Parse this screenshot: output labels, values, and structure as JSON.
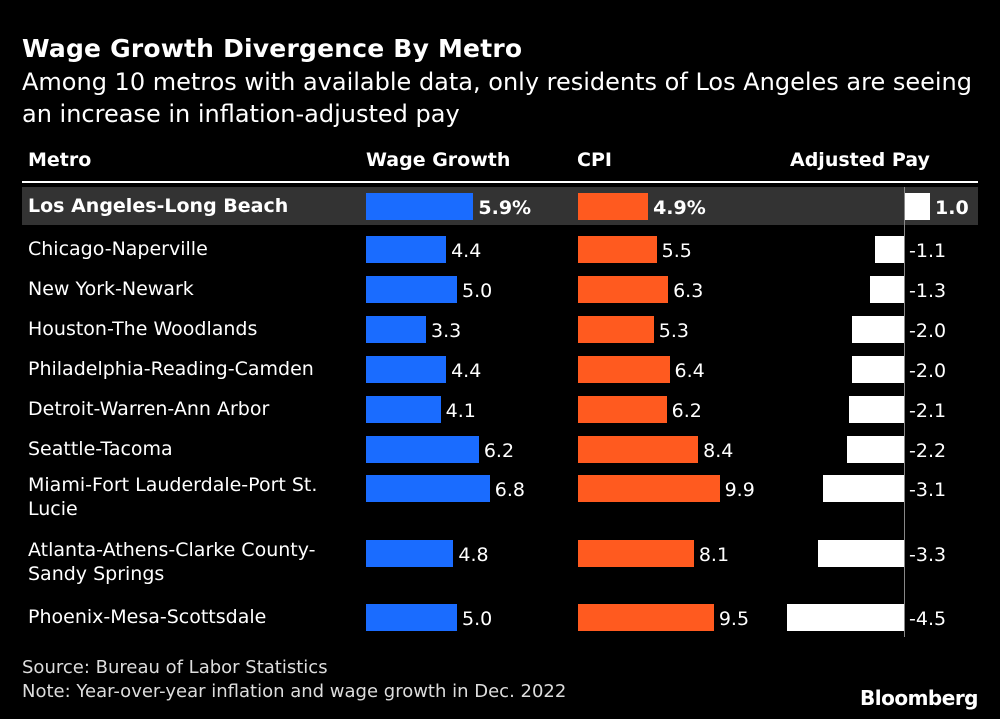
{
  "title": "Wage Growth Divergence By Metro",
  "subtitle": "Among 10 metros with available data, only residents of Los Angeles are seeing an increase in inflation-adjusted pay",
  "headers": {
    "metro": "Metro",
    "wage": "Wage Growth",
    "cpi": "CPI",
    "adjusted": "Adjusted Pay"
  },
  "colors": {
    "wage": "#1a6cff",
    "cpi": "#ff5a1f",
    "adjusted": "#ffffff",
    "highlight": "#333333"
  },
  "source": "Source: Bureau of Labor Statistics",
  "note": "Note: Year-over-year inflation and wage growth in Dec. 2022",
  "brand": "Bloomberg",
  "chart_data": {
    "type": "table",
    "columns": [
      "Metro",
      "Wage Growth",
      "CPI",
      "Adjusted Pay"
    ],
    "rows": [
      {
        "metro": "Los Angeles-Long Beach",
        "wage": 5.9,
        "wage_label": "5.9%",
        "cpi": 4.9,
        "cpi_label": "4.9%",
        "adjusted": 1.0,
        "adjusted_label": "1.0",
        "highlight": true
      },
      {
        "metro": "Chicago-Naperville",
        "wage": 4.4,
        "wage_label": "4.4",
        "cpi": 5.5,
        "cpi_label": "5.5",
        "adjusted": -1.1,
        "adjusted_label": "-1.1"
      },
      {
        "metro": "New York-Newark",
        "wage": 5.0,
        "wage_label": "5.0",
        "cpi": 6.3,
        "cpi_label": "6.3",
        "adjusted": -1.3,
        "adjusted_label": "-1.3"
      },
      {
        "metro": "Houston-The Woodlands",
        "wage": 3.3,
        "wage_label": "3.3",
        "cpi": 5.3,
        "cpi_label": "5.3",
        "adjusted": -2.0,
        "adjusted_label": "-2.0"
      },
      {
        "metro": "Philadelphia-Reading-Camden",
        "wage": 4.4,
        "wage_label": "4.4",
        "cpi": 6.4,
        "cpi_label": "6.4",
        "adjusted": -2.0,
        "adjusted_label": "-2.0"
      },
      {
        "metro": "Detroit-Warren-Ann Arbor",
        "wage": 4.1,
        "wage_label": "4.1",
        "cpi": 6.2,
        "cpi_label": "6.2",
        "adjusted": -2.1,
        "adjusted_label": "-2.1"
      },
      {
        "metro": "Seattle-Tacoma",
        "wage": 6.2,
        "wage_label": "6.2",
        "cpi": 8.4,
        "cpi_label": "8.4",
        "adjusted": -2.2,
        "adjusted_label": "-2.2"
      },
      {
        "metro": "Miami-Fort Lauderdale-Port St. Lucie",
        "wage": 6.8,
        "wage_label": "6.8",
        "cpi": 9.9,
        "cpi_label": "9.9",
        "adjusted": -3.1,
        "adjusted_label": "-3.1"
      },
      {
        "metro": "Atlanta-Athens-Clarke County-Sandy Springs",
        "wage": 4.8,
        "wage_label": "4.8",
        "cpi": 8.1,
        "cpi_label": "8.1",
        "adjusted": -3.3,
        "adjusted_label": "-3.3"
      },
      {
        "metro": "Phoenix-Mesa-Scottsdale",
        "wage": 5.0,
        "wage_label": "5.0",
        "cpi": 9.5,
        "cpi_label": "9.5",
        "adjusted": -4.5,
        "adjusted_label": "-4.5"
      }
    ]
  }
}
